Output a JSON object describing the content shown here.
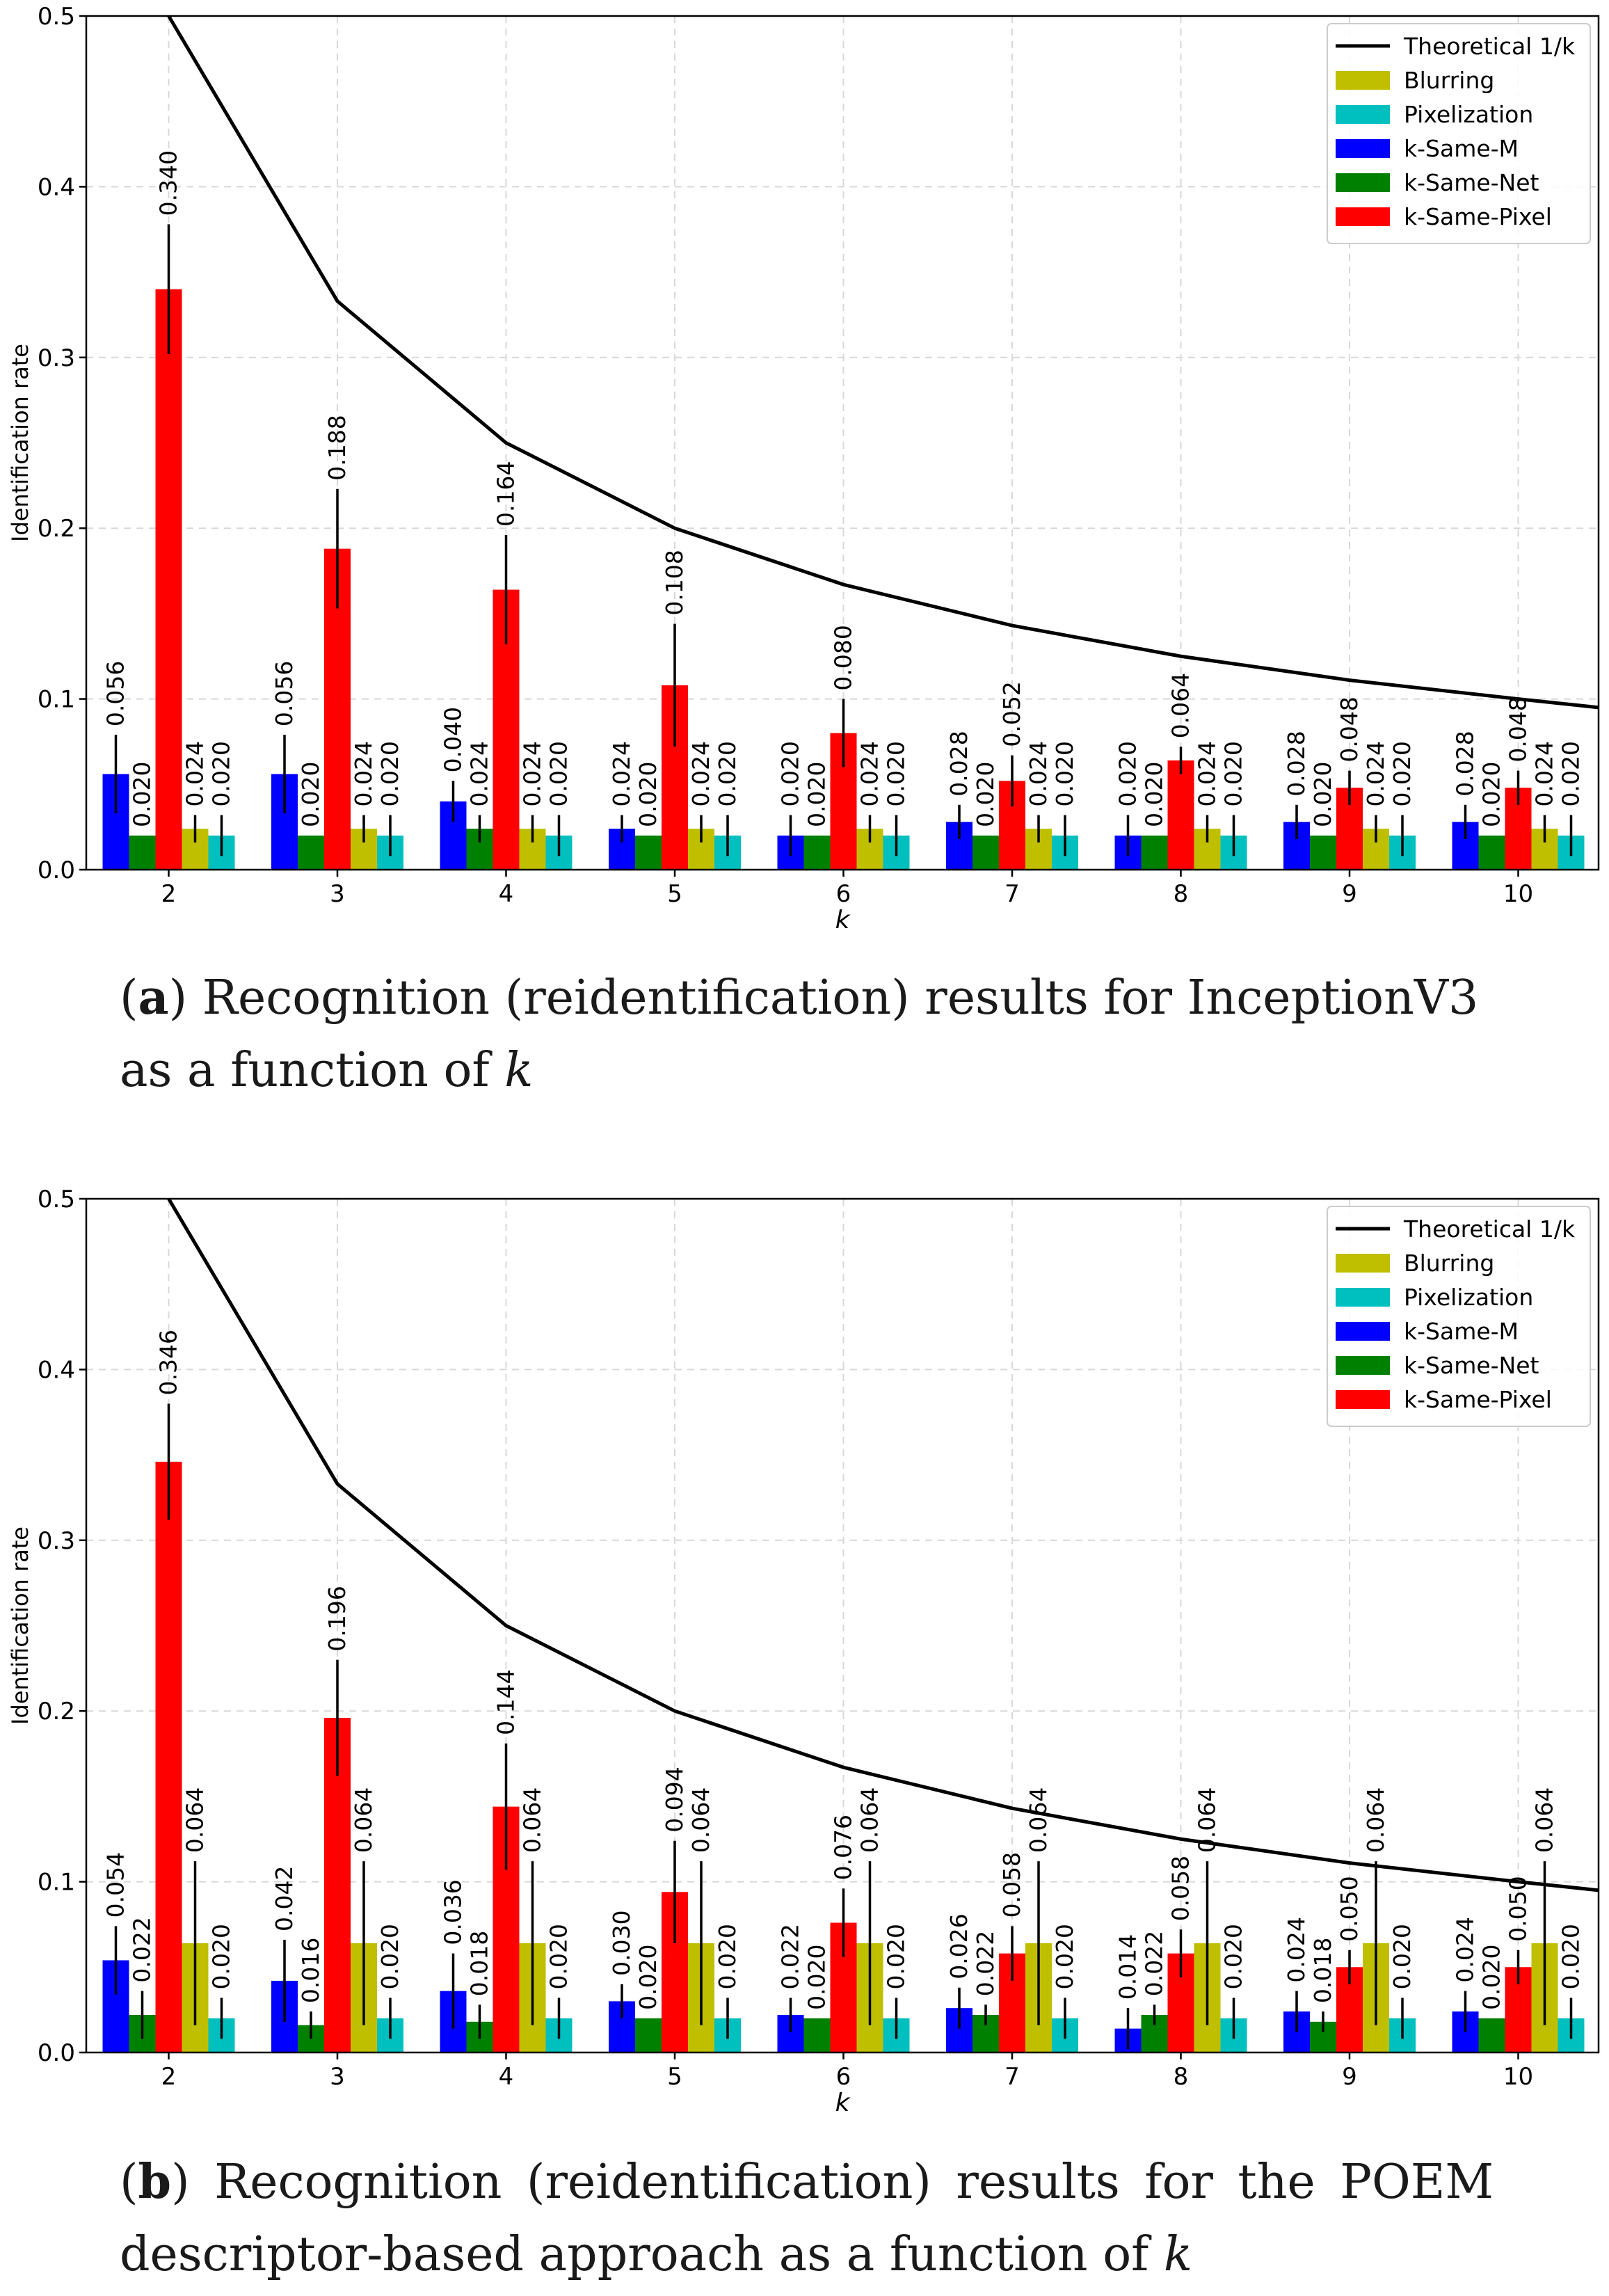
{
  "colors": {
    "k-Same-M": "#0000ff",
    "k-Same-Net": "#008000",
    "k-Same-Pixel": "#ff0000",
    "Blurring": "#bfbf00",
    "Pixelization": "#00bfbf",
    "Theoretical 1/k": "#000000"
  },
  "chart_data": [
    {
      "type": "bar",
      "title": "",
      "xlabel": "k",
      "ylabel": "Identification rate",
      "ylim": [
        0,
        0.5
      ],
      "yticks": [
        "0.0",
        "0.1",
        "0.2",
        "0.3",
        "0.4",
        "0.5"
      ],
      "grid": true,
      "legend_position": "top-right",
      "categories": [
        "2",
        "3",
        "4",
        "5",
        "6",
        "7",
        "8",
        "9",
        "10"
      ],
      "series": [
        {
          "name": "k-Same-M",
          "values": [
            0.056,
            0.056,
            0.04,
            0.024,
            0.02,
            0.028,
            0.02,
            0.028,
            0.028
          ],
          "errors": [
            0.023,
            0.023,
            0.012,
            0.008,
            0.012,
            0.01,
            0.012,
            0.01,
            0.01
          ],
          "labels": [
            "0.056",
            "0.056",
            "0.040",
            "0.024",
            "0.020",
            "0.028",
            "0.020",
            "0.028",
            "0.028"
          ]
        },
        {
          "name": "k-Same-Net",
          "values": [
            0.02,
            0.02,
            0.024,
            0.02,
            0.02,
            0.02,
            0.02,
            0.02,
            0.02
          ],
          "errors": [
            0,
            0,
            0.008,
            0,
            0,
            0,
            0,
            0,
            0
          ],
          "labels": [
            "0.020",
            "0.020",
            "0.024",
            "0.020",
            "0.020",
            "0.020",
            "0.020",
            "0.020",
            "0.020"
          ]
        },
        {
          "name": "k-Same-Pixel",
          "values": [
            0.34,
            0.188,
            0.164,
            0.108,
            0.08,
            0.052,
            0.064,
            0.048,
            0.048
          ],
          "errors": [
            0.038,
            0.035,
            0.032,
            0.036,
            0.02,
            0.015,
            0.008,
            0.01,
            0.01
          ],
          "labels": [
            "0.340",
            "0.188",
            "0.164",
            "0.108",
            "0.080",
            "0.052",
            "0.064",
            "0.048",
            "0.048"
          ]
        },
        {
          "name": "Blurring",
          "values": [
            0.024,
            0.024,
            0.024,
            0.024,
            0.024,
            0.024,
            0.024,
            0.024,
            0.024
          ],
          "errors": [
            0.008,
            0.008,
            0.008,
            0.008,
            0.008,
            0.008,
            0.008,
            0.008,
            0.008
          ],
          "labels": [
            "0.024",
            "0.024",
            "0.024",
            "0.024",
            "0.024",
            "0.024",
            "0.024",
            "0.024",
            "0.024"
          ]
        },
        {
          "name": "Pixelization",
          "values": [
            0.02,
            0.02,
            0.02,
            0.02,
            0.02,
            0.02,
            0.02,
            0.02,
            0.02
          ],
          "errors": [
            0.012,
            0.012,
            0.012,
            0.012,
            0.012,
            0.012,
            0.012,
            0.012,
            0.012
          ],
          "labels": [
            "0.020",
            "0.020",
            "0.020",
            "0.020",
            "0.020",
            "0.020",
            "0.020",
            "0.020",
            "0.020"
          ]
        }
      ],
      "line": {
        "name": "Theoretical 1/k",
        "x": [
          2,
          3,
          4,
          5,
          6,
          7,
          8,
          9,
          10,
          10.5
        ],
        "values": [
          0.5,
          0.333,
          0.25,
          0.2,
          0.167,
          0.143,
          0.125,
          0.111,
          0.1,
          0.095
        ]
      },
      "legend": [
        "Theoretical 1/k",
        "Blurring",
        "Pixelization",
        "k-Same-M",
        "k-Same-Net",
        "k-Same-Pixel"
      ]
    },
    {
      "type": "bar",
      "title": "",
      "xlabel": "k",
      "ylabel": "Identification rate",
      "ylim": [
        0,
        0.5
      ],
      "yticks": [
        "0.0",
        "0.1",
        "0.2",
        "0.3",
        "0.4",
        "0.5"
      ],
      "grid": true,
      "legend_position": "top-right",
      "categories": [
        "2",
        "3",
        "4",
        "5",
        "6",
        "7",
        "8",
        "9",
        "10"
      ],
      "series": [
        {
          "name": "k-Same-M",
          "values": [
            0.054,
            0.042,
            0.036,
            0.03,
            0.022,
            0.026,
            0.014,
            0.024,
            0.024
          ],
          "errors": [
            0.02,
            0.024,
            0.022,
            0.01,
            0.01,
            0.012,
            0.012,
            0.012,
            0.012
          ],
          "labels": [
            "0.054",
            "0.042",
            "0.036",
            "0.030",
            "0.022",
            "0.026",
            "0.014",
            "0.024",
            "0.024"
          ]
        },
        {
          "name": "k-Same-Net",
          "values": [
            0.022,
            0.016,
            0.018,
            0.02,
            0.02,
            0.022,
            0.022,
            0.018,
            0.02
          ],
          "errors": [
            0.014,
            0.008,
            0.01,
            0,
            0,
            0.006,
            0.006,
            0.006,
            0
          ],
          "labels": [
            "0.022",
            "0.016",
            "0.018",
            "0.020",
            "0.020",
            "0.022",
            "0.022",
            "0.018",
            "0.020"
          ]
        },
        {
          "name": "k-Same-Pixel",
          "values": [
            0.346,
            0.196,
            0.144,
            0.094,
            0.076,
            0.058,
            0.058,
            0.05,
            0.05
          ],
          "errors": [
            0.034,
            0.034,
            0.037,
            0.03,
            0.02,
            0.016,
            0.014,
            0.01,
            0.01
          ],
          "labels": [
            "0.346",
            "0.196",
            "0.144",
            "0.094",
            "0.076",
            "0.058",
            "0.058",
            "0.050",
            "0.050"
          ]
        },
        {
          "name": "Blurring",
          "values": [
            0.064,
            0.064,
            0.064,
            0.064,
            0.064,
            0.064,
            0.064,
            0.064,
            0.064
          ],
          "errors": [
            0.048,
            0.048,
            0.048,
            0.048,
            0.048,
            0.048,
            0.048,
            0.048,
            0.048
          ],
          "labels": [
            "0.064",
            "0.064",
            "0.064",
            "0.064",
            "0.064",
            "0.064",
            "0.064",
            "0.064",
            "0.064"
          ]
        },
        {
          "name": "Pixelization",
          "values": [
            0.02,
            0.02,
            0.02,
            0.02,
            0.02,
            0.02,
            0.02,
            0.02,
            0.02
          ],
          "errors": [
            0.012,
            0.012,
            0.012,
            0.012,
            0.012,
            0.012,
            0.012,
            0.012,
            0.012
          ],
          "labels": [
            "0.020",
            "0.020",
            "0.020",
            "0.020",
            "0.020",
            "0.020",
            "0.020",
            "0.020",
            "0.020"
          ]
        }
      ],
      "line": {
        "name": "Theoretical 1/k",
        "x": [
          2,
          3,
          4,
          5,
          6,
          7,
          8,
          9,
          10,
          10.5
        ],
        "values": [
          0.5,
          0.333,
          0.25,
          0.2,
          0.167,
          0.143,
          0.125,
          0.111,
          0.1,
          0.095
        ]
      },
      "legend": [
        "Theoretical 1/k",
        "Blurring",
        "Pixelization",
        "k-Same-M",
        "k-Same-Net",
        "k-Same-Pixel"
      ]
    }
  ],
  "captions": [
    {
      "label": "a",
      "text": "Recognition (reidentification) results for InceptionV3 as a function of ",
      "var": "k"
    },
    {
      "label": "b",
      "text": "Recognition (reidentification) results for the POEM descriptor-based approach as a function of ",
      "var": "k"
    }
  ]
}
